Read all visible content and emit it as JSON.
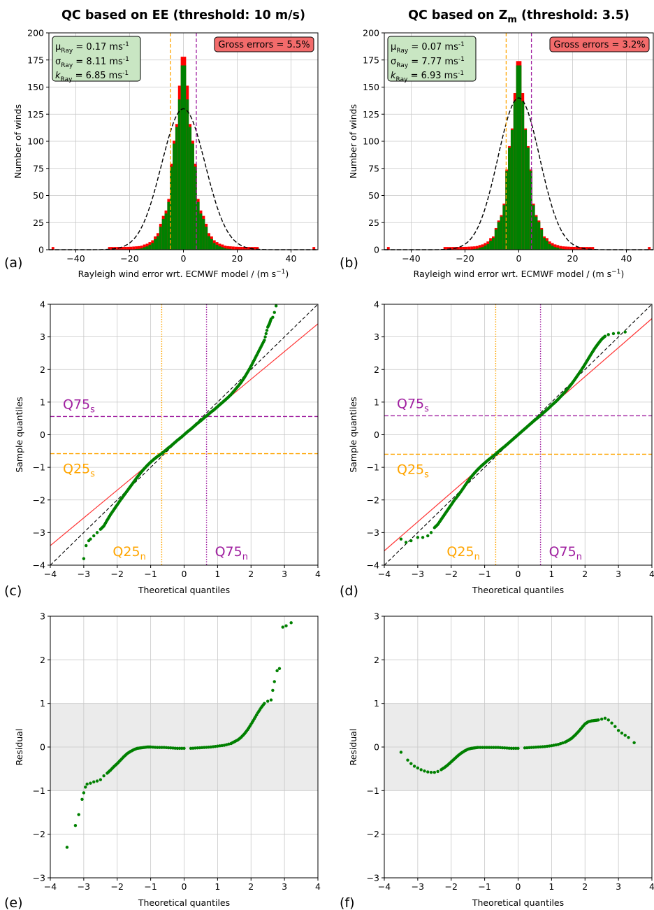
{
  "figure": {
    "panel_labels": [
      "(a)",
      "(b)",
      "(c)",
      "(d)",
      "(e)",
      "(f)"
    ],
    "colors": {
      "accepted": "#008000",
      "gross": "#ff0000",
      "fit": "#000000",
      "q25": "#ffa500",
      "q75": "#a020a0",
      "fit_line": "#ff3333",
      "shade": "#ebebeb",
      "grid": "#c8c8c8",
      "stats_box": "#c9e6c3",
      "gross_box": "#f36b6b"
    }
  },
  "chart_data": [
    {
      "id": "a",
      "type": "bar",
      "title_prefix": "QC based on EE (threshold: 10 m/s)",
      "title_sub": "",
      "title_suffix": "",
      "xlabel": "Rayleigh wind error wrt. ECMWF model / (m s",
      "xlabel_sup": "−1",
      "xlabel_end": ")",
      "ylabel": "Number of winds",
      "xlim": [
        -50,
        50
      ],
      "ylim": [
        0,
        200
      ],
      "xticks": [
        -40,
        -20,
        0,
        20,
        40
      ],
      "yticks": [
        0,
        25,
        50,
        75,
        100,
        125,
        150,
        175,
        200
      ],
      "grid": true,
      "stats": {
        "mu_sym": "μ",
        "mu_sub": "Ray",
        "mu_val": " = 0.17 ms",
        "mu_sup": "-1",
        "sigma_sym": "σ",
        "sigma_sub": "Ray",
        "sigma_val": " = 8.11 ms",
        "sigma_sup": "-1",
        "k_sym": "k",
        "k_sub": "Ray",
        "k_val": " = 6.85 ms",
        "k_sup": "-1"
      },
      "gross_label": "Gross errors = 5.5%",
      "quartile_lines_x": {
        "q25": -4.8,
        "q75": 4.8
      },
      "gauss_fit": {
        "mu": 0,
        "sigma": 8.11,
        "peak": 130
      },
      "hist_peak": 170,
      "gross_peak": 178,
      "gross_excess": 4
    },
    {
      "id": "b",
      "type": "bar",
      "title_prefix": "QC based on Z",
      "title_sub": "m",
      "title_suffix": " (threshold: 3.5)",
      "xlabel": "Rayleigh wind error wrt. ECMWF model / (m s",
      "xlabel_sup": "−1",
      "xlabel_end": ")",
      "ylabel": "Number of winds",
      "xlim": [
        -50,
        50
      ],
      "ylim": [
        0,
        200
      ],
      "xticks": [
        -40,
        -20,
        0,
        20,
        40
      ],
      "yticks": [
        0,
        25,
        50,
        75,
        100,
        125,
        150,
        175,
        200
      ],
      "grid": true,
      "stats": {
        "mu_sym": "μ",
        "mu_sub": "Ray",
        "mu_val": " = 0.07 ms",
        "mu_sup": "-1",
        "sigma_sym": "σ",
        "sigma_sub": "Ray",
        "sigma_val": " = 7.77 ms",
        "sigma_sup": "-1",
        "k_sym": "k",
        "k_sub": "Ray",
        "k_val": " = 6.93 ms",
        "k_sup": "-1"
      },
      "gross_label": "Gross errors = 3.2%",
      "quartile_lines_x": {
        "q25": -4.7,
        "q75": 4.7
      },
      "gauss_fit": {
        "mu": 0,
        "sigma": 7.77,
        "peak": 140
      },
      "hist_peak": 170,
      "gross_peak": 170,
      "gross_excess": 2
    },
    {
      "id": "c",
      "type": "scatter",
      "xlabel": "Theoretical quantiles",
      "ylabel": "Sample quantiles",
      "xlim": [
        -4,
        4
      ],
      "ylim": [
        -4,
        4
      ],
      "xticks": [
        -4,
        -3,
        -2,
        -1,
        0,
        1,
        2,
        3,
        4
      ],
      "yticks": [
        -4,
        -3,
        -2,
        -1,
        0,
        1,
        2,
        3,
        4
      ],
      "grid": true,
      "q75_s": {
        "label": "Q75",
        "sub": "s",
        "y": 0.56
      },
      "q25_s": {
        "label": "Q25",
        "sub": "s",
        "y": -0.58
      },
      "q25_n": {
        "label": "Q25",
        "sub": "n",
        "x": -0.67
      },
      "q75_n": {
        "label": "Q75",
        "sub": "n",
        "x": 0.67
      },
      "fit_line": {
        "slope": 0.85,
        "intercept": 0
      },
      "points": [
        [
          -3.0,
          -3.8
        ],
        [
          -2.93,
          -3.4
        ],
        [
          -2.85,
          -3.25
        ],
        [
          -2.8,
          -3.2
        ],
        [
          -2.7,
          -3.1
        ],
        [
          -2.6,
          -3.0
        ],
        [
          -2.5,
          -2.9
        ],
        [
          -2.4,
          -2.8
        ],
        [
          -2.3,
          -2.62
        ],
        [
          -2.2,
          -2.45
        ],
        [
          -2.1,
          -2.3
        ],
        [
          -2.0,
          -2.15
        ],
        [
          -1.9,
          -2.0
        ],
        [
          -1.8,
          -1.86
        ],
        [
          -1.7,
          -1.72
        ],
        [
          -1.6,
          -1.58
        ],
        [
          -1.5,
          -1.44
        ],
        [
          -1.4,
          -1.3
        ],
        [
          -1.3,
          -1.17
        ],
        [
          -1.2,
          -1.05
        ],
        [
          -1.1,
          -0.94
        ],
        [
          -1.0,
          -0.84
        ],
        [
          -0.9,
          -0.75
        ],
        [
          -0.8,
          -0.67
        ],
        [
          -0.7,
          -0.6
        ],
        [
          -0.6,
          -0.52
        ],
        [
          -0.5,
          -0.43
        ],
        [
          -0.4,
          -0.35
        ],
        [
          -0.3,
          -0.26
        ],
        [
          -0.2,
          -0.17
        ],
        [
          -0.1,
          -0.09
        ],
        [
          0.0,
          0.0
        ],
        [
          0.1,
          0.09
        ],
        [
          0.2,
          0.17
        ],
        [
          0.3,
          0.26
        ],
        [
          0.4,
          0.35
        ],
        [
          0.5,
          0.43
        ],
        [
          0.6,
          0.52
        ],
        [
          0.7,
          0.6
        ],
        [
          0.8,
          0.69
        ],
        [
          0.9,
          0.77
        ],
        [
          1.0,
          0.86
        ],
        [
          1.1,
          0.95
        ],
        [
          1.2,
          1.04
        ],
        [
          1.3,
          1.13
        ],
        [
          1.4,
          1.23
        ],
        [
          1.5,
          1.35
        ],
        [
          1.6,
          1.47
        ],
        [
          1.7,
          1.6
        ],
        [
          1.8,
          1.75
        ],
        [
          1.9,
          1.92
        ],
        [
          2.0,
          2.1
        ],
        [
          2.1,
          2.3
        ],
        [
          2.2,
          2.5
        ],
        [
          2.3,
          2.7
        ],
        [
          2.4,
          2.9
        ],
        [
          2.5,
          3.3
        ],
        [
          2.55,
          3.4
        ],
        [
          2.6,
          3.55
        ],
        [
          2.65,
          3.6
        ],
        [
          2.7,
          3.75
        ],
        [
          2.75,
          3.95
        ]
      ],
      "panel": "c"
    },
    {
      "id": "d",
      "type": "scatter",
      "xlabel": "Theoretical quantiles",
      "ylabel": "Sample quantiles",
      "xlim": [
        -4,
        4
      ],
      "ylim": [
        -4,
        4
      ],
      "xticks": [
        -4,
        -3,
        -2,
        -1,
        0,
        1,
        2,
        3,
        4
      ],
      "yticks": [
        -4,
        -3,
        -2,
        -1,
        0,
        1,
        2,
        3,
        4
      ],
      "grid": true,
      "q75_s": {
        "label": "Q75",
        "sub": "s",
        "y": 0.58
      },
      "q25_s": {
        "label": "Q25",
        "sub": "s",
        "y": -0.6
      },
      "q25_n": {
        "label": "Q25",
        "sub": "n",
        "x": -0.67
      },
      "q75_n": {
        "label": "Q75",
        "sub": "n",
        "x": 0.67
      },
      "fit_line": {
        "slope": 0.89,
        "intercept": 0
      },
      "points": [
        [
          -3.5,
          -3.2
        ],
        [
          -3.35,
          -3.3
        ],
        [
          -3.2,
          -3.25
        ],
        [
          -3.0,
          -3.15
        ],
        [
          -2.85,
          -3.15
        ],
        [
          -2.7,
          -3.1
        ],
        [
          -2.6,
          -3.0
        ],
        [
          -2.5,
          -2.85
        ],
        [
          -2.4,
          -2.75
        ],
        [
          -2.3,
          -2.6
        ],
        [
          -2.2,
          -2.45
        ],
        [
          -2.1,
          -2.3
        ],
        [
          -2.0,
          -2.15
        ],
        [
          -1.9,
          -2.0
        ],
        [
          -1.8,
          -1.87
        ],
        [
          -1.7,
          -1.73
        ],
        [
          -1.6,
          -1.58
        ],
        [
          -1.5,
          -1.43
        ],
        [
          -1.4,
          -1.29
        ],
        [
          -1.3,
          -1.17
        ],
        [
          -1.2,
          -1.06
        ],
        [
          -1.1,
          -0.96
        ],
        [
          -1.0,
          -0.87
        ],
        [
          -0.9,
          -0.78
        ],
        [
          -0.8,
          -0.7
        ],
        [
          -0.7,
          -0.62
        ],
        [
          -0.6,
          -0.53
        ],
        [
          -0.5,
          -0.44
        ],
        [
          -0.4,
          -0.36
        ],
        [
          -0.3,
          -0.27
        ],
        [
          -0.2,
          -0.18
        ],
        [
          -0.1,
          -0.09
        ],
        [
          0.0,
          0.0
        ],
        [
          0.1,
          0.09
        ],
        [
          0.2,
          0.18
        ],
        [
          0.3,
          0.27
        ],
        [
          0.4,
          0.36
        ],
        [
          0.5,
          0.45
        ],
        [
          0.6,
          0.53
        ],
        [
          0.7,
          0.62
        ],
        [
          0.8,
          0.71
        ],
        [
          0.9,
          0.8
        ],
        [
          1.0,
          0.9
        ],
        [
          1.1,
          0.99
        ],
        [
          1.2,
          1.09
        ],
        [
          1.3,
          1.2
        ],
        [
          1.4,
          1.31
        ],
        [
          1.5,
          1.43
        ],
        [
          1.6,
          1.56
        ],
        [
          1.7,
          1.7
        ],
        [
          1.8,
          1.85
        ],
        [
          1.9,
          2.0
        ],
        [
          2.0,
          2.16
        ],
        [
          2.1,
          2.33
        ],
        [
          2.2,
          2.5
        ],
        [
          2.3,
          2.66
        ],
        [
          2.4,
          2.8
        ],
        [
          2.5,
          2.93
        ],
        [
          2.6,
          3.02
        ],
        [
          2.7,
          3.07
        ],
        [
          2.85,
          3.1
        ],
        [
          3.0,
          3.12
        ],
        [
          3.2,
          3.15
        ]
      ],
      "panel": "d"
    },
    {
      "id": "e",
      "type": "scatter",
      "xlabel": "Theoretical quantiles",
      "ylabel": "Residual",
      "xlim": [
        -4,
        4
      ],
      "ylim": [
        -3,
        3
      ],
      "xticks": [
        -4,
        -3,
        -2,
        -1,
        0,
        1,
        2,
        3,
        4
      ],
      "yticks": [
        -3,
        -2,
        -1,
        0,
        1,
        2,
        3
      ],
      "grid": true,
      "shade_band": [
        -1,
        1
      ],
      "points": [
        [
          -3.5,
          -2.3
        ],
        [
          -3.25,
          -1.8
        ],
        [
          -3.15,
          -1.55
        ],
        [
          -3.05,
          -1.2
        ],
        [
          -3.0,
          -1.05
        ],
        [
          -2.95,
          -0.92
        ],
        [
          -2.9,
          -0.85
        ],
        [
          -2.8,
          -0.83
        ],
        [
          -2.7,
          -0.8
        ],
        [
          -2.6,
          -0.78
        ],
        [
          -2.5,
          -0.75
        ],
        [
          -2.4,
          -0.66
        ],
        [
          -2.3,
          -0.6
        ],
        [
          -2.2,
          -0.53
        ],
        [
          -2.1,
          -0.45
        ],
        [
          -2.0,
          -0.38
        ],
        [
          -1.9,
          -0.3
        ],
        [
          -1.8,
          -0.22
        ],
        [
          -1.7,
          -0.15
        ],
        [
          -1.6,
          -0.1
        ],
        [
          -1.5,
          -0.06
        ],
        [
          -1.4,
          -0.03
        ],
        [
          -1.3,
          -0.02
        ],
        [
          -1.2,
          -0.01
        ],
        [
          -1.1,
          0.0
        ],
        [
          -1.0,
          0.0
        ],
        [
          -0.8,
          -0.01
        ],
        [
          -0.6,
          -0.01
        ],
        [
          -0.4,
          -0.02
        ],
        [
          -0.2,
          -0.03
        ],
        [
          0.0,
          -0.03
        ],
        [
          0.2,
          -0.03
        ],
        [
          0.4,
          -0.02
        ],
        [
          0.6,
          -0.01
        ],
        [
          0.8,
          0.0
        ],
        [
          1.0,
          0.02
        ],
        [
          1.2,
          0.04
        ],
        [
          1.4,
          0.08
        ],
        [
          1.5,
          0.12
        ],
        [
          1.6,
          0.16
        ],
        [
          1.7,
          0.22
        ],
        [
          1.8,
          0.3
        ],
        [
          1.9,
          0.4
        ],
        [
          2.0,
          0.52
        ],
        [
          2.1,
          0.65
        ],
        [
          2.2,
          0.78
        ],
        [
          2.3,
          0.9
        ],
        [
          2.4,
          1.0
        ],
        [
          2.5,
          1.05
        ],
        [
          2.6,
          1.08
        ],
        [
          2.65,
          1.3
        ],
        [
          2.7,
          1.5
        ],
        [
          2.78,
          1.75
        ],
        [
          2.85,
          1.8
        ],
        [
          2.95,
          2.75
        ],
        [
          3.05,
          2.78
        ],
        [
          3.2,
          2.85
        ]
      ],
      "panel": "e"
    },
    {
      "id": "f",
      "type": "scatter",
      "xlabel": "Theoretical quantiles",
      "ylabel": "Residual",
      "xlim": [
        -4,
        4
      ],
      "ylim": [
        -3,
        3
      ],
      "xticks": [
        -4,
        -3,
        -2,
        -1,
        0,
        1,
        2,
        3,
        4
      ],
      "yticks": [
        -3,
        -2,
        -1,
        0,
        1,
        2,
        3
      ],
      "grid": true,
      "shade_band": [
        -1,
        1
      ],
      "points": [
        [
          -3.5,
          -0.12
        ],
        [
          -3.3,
          -0.3
        ],
        [
          -3.2,
          -0.38
        ],
        [
          -3.1,
          -0.44
        ],
        [
          -3.0,
          -0.48
        ],
        [
          -2.9,
          -0.52
        ],
        [
          -2.8,
          -0.55
        ],
        [
          -2.7,
          -0.57
        ],
        [
          -2.6,
          -0.58
        ],
        [
          -2.5,
          -0.58
        ],
        [
          -2.4,
          -0.56
        ],
        [
          -2.3,
          -0.52
        ],
        [
          -2.2,
          -0.47
        ],
        [
          -2.1,
          -0.41
        ],
        [
          -2.0,
          -0.34
        ],
        [
          -1.9,
          -0.27
        ],
        [
          -1.8,
          -0.2
        ],
        [
          -1.7,
          -0.14
        ],
        [
          -1.6,
          -0.09
        ],
        [
          -1.5,
          -0.05
        ],
        [
          -1.4,
          -0.03
        ],
        [
          -1.3,
          -0.02
        ],
        [
          -1.2,
          -0.01
        ],
        [
          -1.0,
          -0.01
        ],
        [
          -0.8,
          -0.01
        ],
        [
          -0.6,
          -0.01
        ],
        [
          -0.4,
          -0.02
        ],
        [
          -0.2,
          -0.03
        ],
        [
          0.0,
          -0.03
        ],
        [
          0.2,
          -0.02
        ],
        [
          0.4,
          -0.01
        ],
        [
          0.6,
          0.0
        ],
        [
          0.8,
          0.01
        ],
        [
          1.0,
          0.03
        ],
        [
          1.2,
          0.06
        ],
        [
          1.4,
          0.11
        ],
        [
          1.5,
          0.15
        ],
        [
          1.6,
          0.2
        ],
        [
          1.7,
          0.27
        ],
        [
          1.8,
          0.35
        ],
        [
          1.9,
          0.44
        ],
        [
          2.0,
          0.53
        ],
        [
          2.1,
          0.58
        ],
        [
          2.2,
          0.6
        ],
        [
          2.3,
          0.61
        ],
        [
          2.4,
          0.62
        ],
        [
          2.5,
          0.64
        ],
        [
          2.6,
          0.66
        ],
        [
          2.7,
          0.62
        ],
        [
          2.8,
          0.55
        ],
        [
          2.9,
          0.47
        ],
        [
          3.0,
          0.38
        ],
        [
          3.1,
          0.32
        ],
        [
          3.2,
          0.27
        ],
        [
          3.3,
          0.22
        ],
        [
          3.47,
          0.1
        ]
      ],
      "panel": "f"
    }
  ]
}
